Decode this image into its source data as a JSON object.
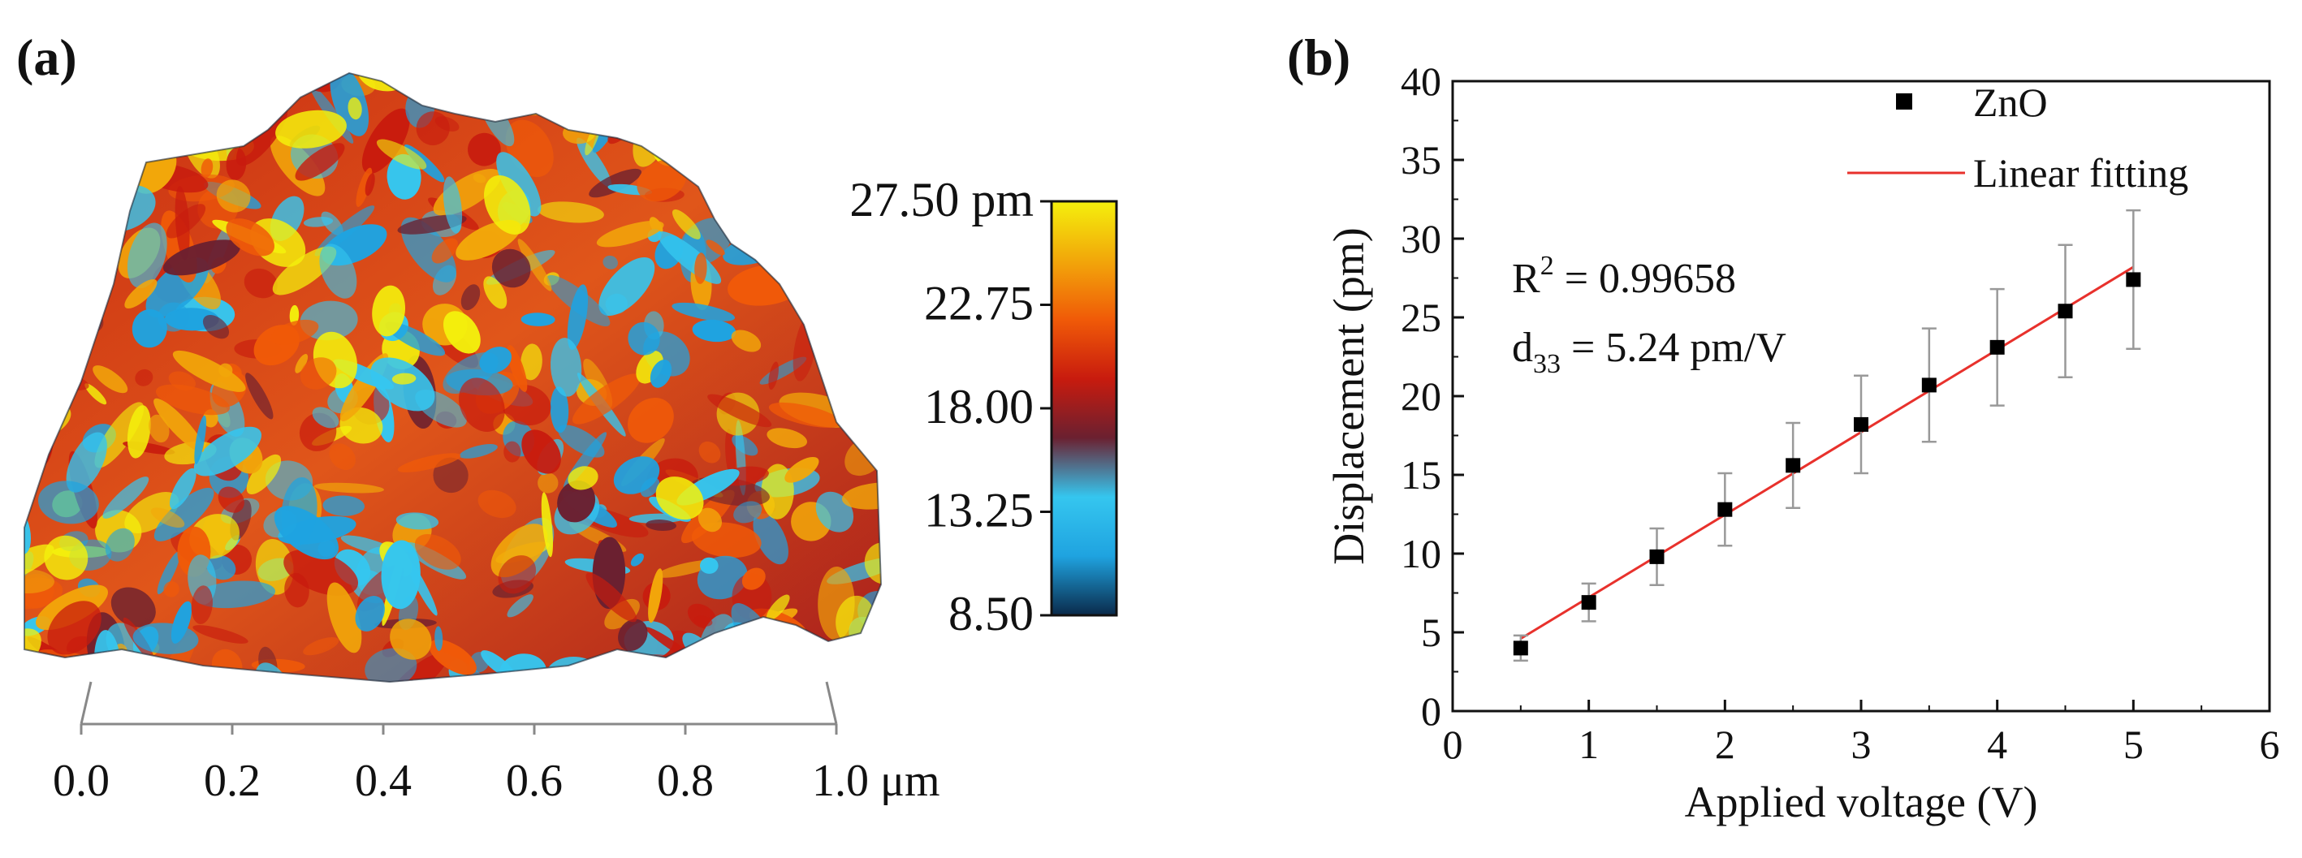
{
  "panel_a": {
    "label": "(a)",
    "colorbar": {
      "labels": [
        "27.50 pm",
        "22.75",
        "18.00",
        "13.25",
        "8.50"
      ],
      "colors": [
        "#0a2a4a",
        "#1fa3e0",
        "#35c6ef",
        "#6b2030",
        "#c81b0e",
        "#f05a08",
        "#f2a70a",
        "#f4f00c"
      ]
    },
    "x_axis": {
      "ticks": [
        "0.0",
        "0.2",
        "0.4",
        "0.6",
        "0.8",
        "1.0 μm"
      ]
    }
  },
  "chart_data": {
    "type": "scatter",
    "label": "(b)",
    "title": "",
    "xlabel": "Applied voltage (V)",
    "ylabel": "Displacement (pm)",
    "xlim": [
      0,
      6
    ],
    "ylim": [
      0,
      40
    ],
    "xticks": [
      0,
      1,
      2,
      3,
      4,
      5,
      6
    ],
    "yticks": [
      0,
      5,
      10,
      15,
      20,
      25,
      30,
      35,
      40
    ],
    "grid": false,
    "legend": {
      "position": "top-right",
      "entries": [
        {
          "name": "ZnO",
          "marker": "square",
          "color": "#000000"
        },
        {
          "name": "Linear fitting",
          "marker": "line",
          "color": "#e8312c"
        }
      ]
    },
    "series": [
      {
        "name": "ZnO",
        "x": [
          0.5,
          1.0,
          1.5,
          2.0,
          2.5,
          3.0,
          3.5,
          4.0,
          4.5,
          5.0
        ],
        "y": [
          4.0,
          6.9,
          9.8,
          12.8,
          15.6,
          18.2,
          20.7,
          23.1,
          25.4,
          27.4
        ],
        "error": [
          0.8,
          1.2,
          1.8,
          2.3,
          2.7,
          3.1,
          3.6,
          3.7,
          4.2,
          4.4
        ]
      }
    ],
    "fit": {
      "name": "Linear fitting",
      "x": [
        0.5,
        5.0
      ],
      "y": [
        4.6,
        28.2
      ]
    },
    "annotations": {
      "r2_label": "R",
      "r2_sup": "2",
      "r2_value": " = 0.99658",
      "d33_label": "d",
      "d33_sub": "33",
      "d33_value": " = 5.24 pm/V"
    }
  }
}
